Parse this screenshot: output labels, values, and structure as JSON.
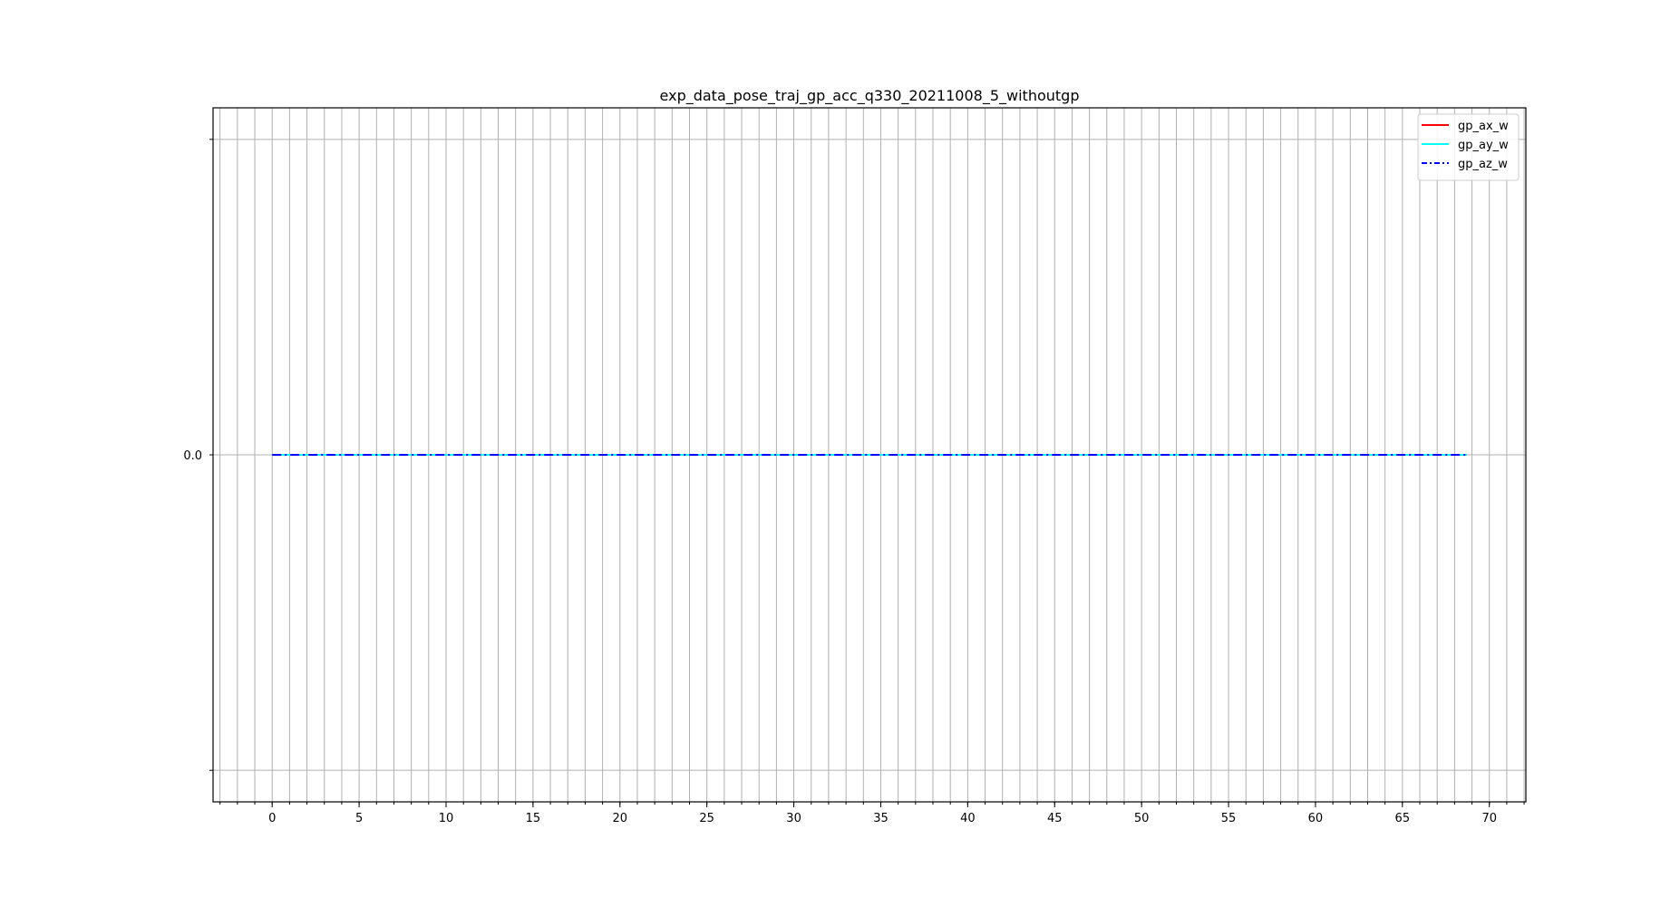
{
  "chart_data": {
    "type": "line",
    "title": "exp_data_pose_traj_gp_acc_q330_20211008_5_withoutgp",
    "xlabel": "",
    "ylabel": "",
    "xlim": [
      -3.4,
      72.1
    ],
    "ylim": [
      -1.1,
      1.1
    ],
    "x_ticks": [
      0,
      5,
      10,
      15,
      20,
      25,
      30,
      35,
      40,
      45,
      50,
      55,
      60,
      65,
      70
    ],
    "x_tick_labels": [
      "0",
      "5",
      "10",
      "15",
      "20",
      "25",
      "30",
      "35",
      "40",
      "45",
      "50",
      "55",
      "60",
      "65",
      "70"
    ],
    "x_minor_tick_step": 1,
    "y_ticks": [
      -1,
      0,
      1
    ],
    "y_tick_labels": [
      "",
      "0.0",
      ""
    ],
    "grid": true,
    "legend_position": "top-right",
    "series": [
      {
        "name": "gp_ax_w",
        "color": "#ff0000",
        "style": "solid",
        "x": [
          0,
          68.7
        ],
        "values": [
          0,
          0
        ]
      },
      {
        "name": "gp_ay_w",
        "color": "#00ffff",
        "style": "solid",
        "x": [
          0,
          68.7
        ],
        "values": [
          0,
          0
        ]
      },
      {
        "name": "gp_az_w",
        "color": "#0000ff",
        "style": "dashdot",
        "x": [
          0,
          68.7
        ],
        "values": [
          0,
          0
        ]
      }
    ]
  }
}
